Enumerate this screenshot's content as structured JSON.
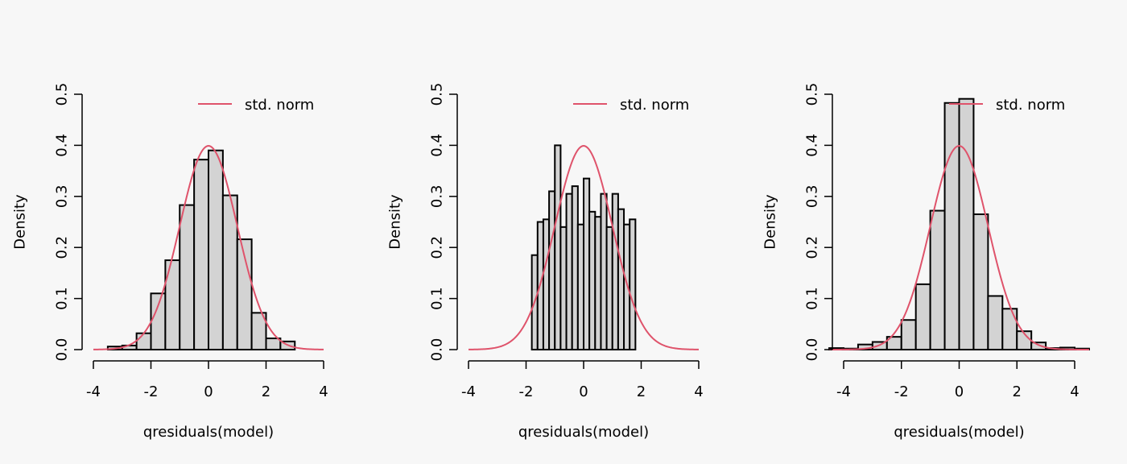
{
  "colors": {
    "background": "#f7f7f7",
    "bar_fill": "#d3d3d3",
    "bar_stroke": "#000000",
    "curve": "#df536b"
  },
  "chart_data": [
    {
      "type": "bar",
      "xlabel": "qresiduals(model)",
      "ylabel": "Density",
      "xlim": [
        -4,
        4
      ],
      "ylim": [
        0,
        0.5
      ],
      "x_ticks": [
        "-4",
        "-2",
        "0",
        "2",
        "4"
      ],
      "y_ticks": [
        "0.0",
        "0.1",
        "0.2",
        "0.3",
        "0.4",
        "0.5"
      ],
      "legend": {
        "label": "std. norm",
        "position": "top-right"
      },
      "bins": [
        {
          "x0": -3.5,
          "x1": -3.0,
          "density": 0.006
        },
        {
          "x0": -3.0,
          "x1": -2.5,
          "density": 0.008
        },
        {
          "x0": -2.5,
          "x1": -2.0,
          "density": 0.032
        },
        {
          "x0": -2.0,
          "x1": -1.5,
          "density": 0.11
        },
        {
          "x0": -1.5,
          "x1": -1.0,
          "density": 0.175
        },
        {
          "x0": -1.0,
          "x1": -0.5,
          "density": 0.283
        },
        {
          "x0": -0.5,
          "x1": 0.0,
          "density": 0.372
        },
        {
          "x0": 0.0,
          "x1": 0.5,
          "density": 0.39
        },
        {
          "x0": 0.5,
          "x1": 1.0,
          "density": 0.302
        },
        {
          "x0": 1.0,
          "x1": 1.5,
          "density": 0.216
        },
        {
          "x0": 1.5,
          "x1": 2.0,
          "density": 0.072
        },
        {
          "x0": 2.0,
          "x1": 2.5,
          "density": 0.022
        },
        {
          "x0": 2.5,
          "x1": 3.0,
          "density": 0.016
        }
      ],
      "curve": {
        "label": "std. norm",
        "mean": 0,
        "sd": 1,
        "x_range": [
          -4,
          4
        ]
      }
    },
    {
      "type": "bar",
      "xlabel": "qresiduals(model)",
      "ylabel": "Density",
      "xlim": [
        -4,
        4
      ],
      "ylim": [
        0,
        0.5
      ],
      "x_ticks": [
        "-4",
        "-2",
        "0",
        "2",
        "4"
      ],
      "y_ticks": [
        "0.0",
        "0.1",
        "0.2",
        "0.3",
        "0.4",
        "0.5"
      ],
      "legend": {
        "label": "std. norm",
        "position": "top-right"
      },
      "bins": [
        {
          "x0": -1.8,
          "x1": -1.6,
          "density": 0.185
        },
        {
          "x0": -1.6,
          "x1": -1.4,
          "density": 0.25
        },
        {
          "x0": -1.4,
          "x1": -1.2,
          "density": 0.255
        },
        {
          "x0": -1.2,
          "x1": -1.0,
          "density": 0.31
        },
        {
          "x0": -1.0,
          "x1": -0.8,
          "density": 0.4
        },
        {
          "x0": -0.8,
          "x1": -0.6,
          "density": 0.24
        },
        {
          "x0": -0.6,
          "x1": -0.4,
          "density": 0.305
        },
        {
          "x0": -0.4,
          "x1": -0.2,
          "density": 0.32
        },
        {
          "x0": -0.2,
          "x1": 0.0,
          "density": 0.245
        },
        {
          "x0": 0.0,
          "x1": 0.2,
          "density": 0.335
        },
        {
          "x0": 0.2,
          "x1": 0.4,
          "density": 0.27
        },
        {
          "x0": 0.4,
          "x1": 0.6,
          "density": 0.26
        },
        {
          "x0": 0.6,
          "x1": 0.8,
          "density": 0.305
        },
        {
          "x0": 0.8,
          "x1": 1.0,
          "density": 0.24
        },
        {
          "x0": 1.0,
          "x1": 1.2,
          "density": 0.305
        },
        {
          "x0": 1.2,
          "x1": 1.4,
          "density": 0.275
        },
        {
          "x0": 1.4,
          "x1": 1.6,
          "density": 0.245
        },
        {
          "x0": 1.6,
          "x1": 1.8,
          "density": 0.255
        }
      ],
      "curve": {
        "label": "std. norm",
        "mean": 0,
        "sd": 1,
        "x_range": [
          -4,
          4
        ]
      }
    },
    {
      "type": "bar",
      "xlabel": "qresiduals(model)",
      "ylabel": "Density",
      "xlim": [
        -4.5,
        4.5
      ],
      "ylim": [
        0,
        0.5
      ],
      "x_ticks": [
        "-4",
        "-2",
        "0",
        "2",
        "4"
      ],
      "y_ticks": [
        "0.0",
        "0.1",
        "0.2",
        "0.3",
        "0.4",
        "0.5"
      ],
      "legend": {
        "label": "std. norm",
        "position": "top-right"
      },
      "bins": [
        {
          "x0": -4.5,
          "x1": -4.0,
          "density": 0.003
        },
        {
          "x0": -4.0,
          "x1": -3.5,
          "density": 0.002
        },
        {
          "x0": -3.5,
          "x1": -3.0,
          "density": 0.01
        },
        {
          "x0": -3.0,
          "x1": -2.5,
          "density": 0.015
        },
        {
          "x0": -2.5,
          "x1": -2.0,
          "density": 0.025
        },
        {
          "x0": -2.0,
          "x1": -1.5,
          "density": 0.058
        },
        {
          "x0": -1.5,
          "x1": -1.0,
          "density": 0.128
        },
        {
          "x0": -1.0,
          "x1": -0.5,
          "density": 0.272
        },
        {
          "x0": -0.5,
          "x1": 0.0,
          "density": 0.483
        },
        {
          "x0": 0.0,
          "x1": 0.5,
          "density": 0.491
        },
        {
          "x0": 0.5,
          "x1": 1.0,
          "density": 0.265
        },
        {
          "x0": 1.0,
          "x1": 1.5,
          "density": 0.105
        },
        {
          "x0": 1.5,
          "x1": 2.0,
          "density": 0.08
        },
        {
          "x0": 2.0,
          "x1": 2.5,
          "density": 0.036
        },
        {
          "x0": 2.5,
          "x1": 3.0,
          "density": 0.014
        },
        {
          "x0": 3.0,
          "x1": 3.5,
          "density": 0.003
        },
        {
          "x0": 3.5,
          "x1": 4.0,
          "density": 0.004
        },
        {
          "x0": 4.0,
          "x1": 4.5,
          "density": 0.002
        }
      ],
      "curve": {
        "label": "std. norm",
        "mean": 0,
        "sd": 1,
        "x_range": [
          -4.5,
          4.5
        ]
      }
    }
  ]
}
